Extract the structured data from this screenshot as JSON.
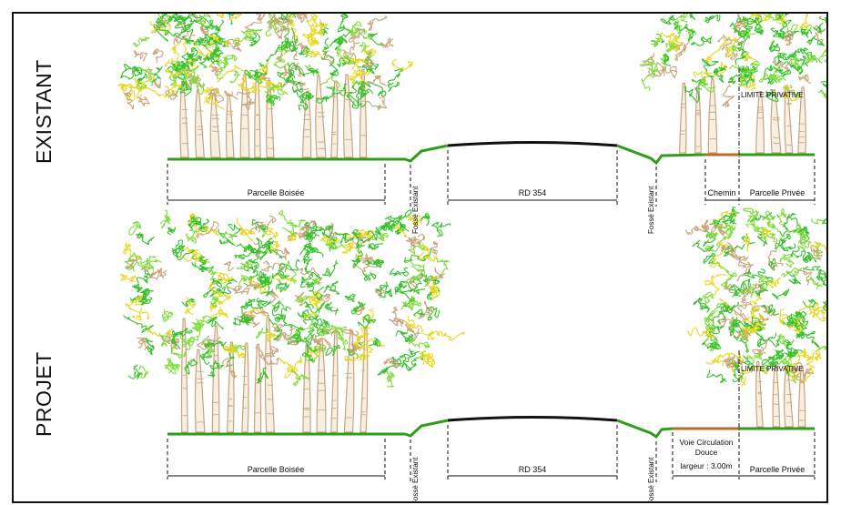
{
  "sections": {
    "existant": {
      "title": "EXISTANT",
      "labels": {
        "parcelle_boisee": "Parcelle Boisée",
        "fosse_left": "Fossé Existant",
        "road": "RD 354",
        "fosse_right": "Fossé Existant",
        "chemin": "Chemin",
        "parcelle_privee": "Parcelle Privée",
        "limite": "LIMITE PRIVATIVE"
      }
    },
    "projet": {
      "title": "PROJET",
      "labels": {
        "parcelle_boisee": "Parcelle Boisée",
        "fosse_left": "Fossé Existant",
        "road": "RD 354",
        "fosse_right": "Fossé Existant",
        "voie_line1": "Voie Circulation",
        "voie_line2": "Douce",
        "voie_line3": "largeur : 3.00m",
        "parcelle_privee": "Parcelle Privée",
        "limite": "LIMITE PRIVATIVE"
      }
    }
  },
  "colors": {
    "ground": "#2e9e1a",
    "road": "#111111",
    "path": "#c06a2a",
    "foliage_green": "#36c02a",
    "foliage_light": "#7fdc3a",
    "foliage_yellow": "#e6d81f",
    "trunk": "#c9a37a"
  }
}
